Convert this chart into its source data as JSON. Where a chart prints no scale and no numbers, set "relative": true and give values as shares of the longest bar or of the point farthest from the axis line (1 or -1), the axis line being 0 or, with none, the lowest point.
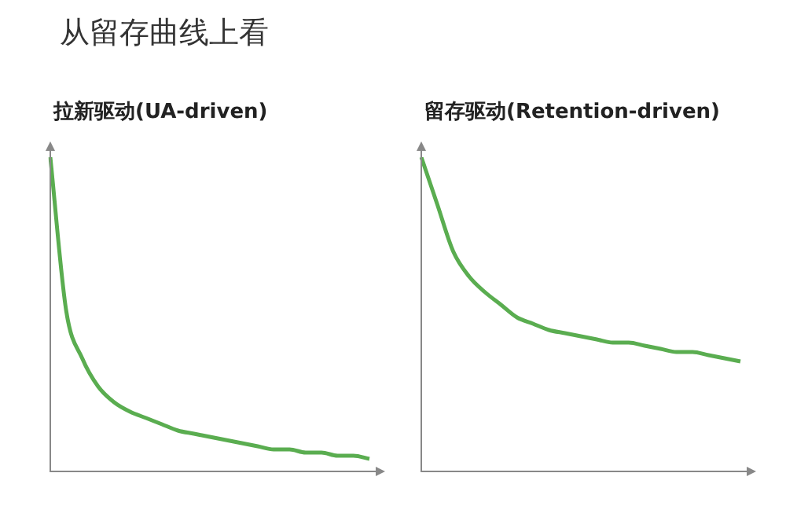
{
  "chart_data": [
    {
      "type": "other",
      "title": "从留存曲线上看"
    },
    {
      "type": "line",
      "title": "拉新驱动(UA-driven)",
      "relative": true,
      "categories": [
        null,
        null,
        null,
        null,
        null,
        null,
        null,
        null,
        null,
        null,
        null,
        null,
        null,
        null,
        null,
        null,
        null,
        null,
        null,
        null,
        null
      ],
      "series": [
        {
          "color": "#5aad50",
          "values": [
            1.0,
            0.51,
            0.36,
            0.27,
            0.22,
            0.19,
            0.17,
            0.15,
            0.13,
            0.12,
            0.11,
            0.1,
            0.09,
            0.08,
            0.07,
            0.07,
            0.06,
            0.06,
            0.05,
            0.05,
            0.04
          ]
        }
      ],
      "grid": false,
      "legend": false,
      "marker": "none",
      "line_style": "solid"
    },
    {
      "type": "line",
      "title": "留存驱动(Retention-driven)",
      "relative": true,
      "categories": [
        null,
        null,
        null,
        null,
        null,
        null,
        null,
        null,
        null,
        null,
        null,
        null,
        null,
        null,
        null,
        null,
        null,
        null,
        null,
        null,
        null
      ],
      "series": [
        {
          "color": "#5aad50",
          "values": [
            1.0,
            0.85,
            0.7,
            0.62,
            0.57,
            0.53,
            0.49,
            0.47,
            0.45,
            0.44,
            0.43,
            0.42,
            0.41,
            0.41,
            0.4,
            0.39,
            0.38,
            0.38,
            0.37,
            0.36,
            0.35
          ]
        }
      ],
      "grid": false,
      "legend": false,
      "marker": "none",
      "line_style": "solid"
    }
  ]
}
